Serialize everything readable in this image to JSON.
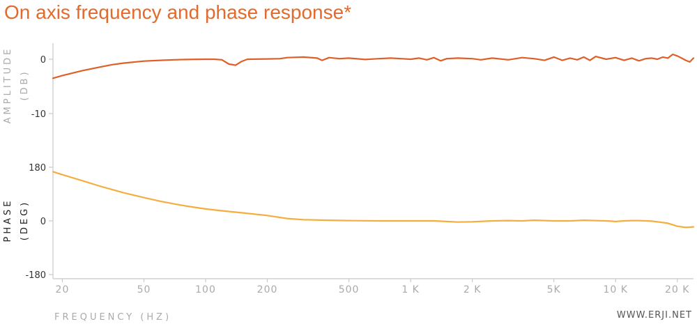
{
  "title": "On axis frequency and phase response*",
  "watermark": "WWW.ERJI.NET",
  "colors": {
    "title": "#e26a2c",
    "amplitude_line": "#de5f27",
    "phase_line": "#f5ad3e",
    "axis": "#c8c8c8",
    "label_gray": "#aaaaaa",
    "label_dark": "#222222"
  },
  "chart_data": [
    {
      "type": "line",
      "name": "amplitude",
      "xscale": "log",
      "xlim": [
        18,
        24000
      ],
      "ylim": [
        -10,
        3
      ],
      "ylabel_lines": [
        "AMPLITUDE",
        "(DB)"
      ],
      "yticks": [
        0,
        -10
      ],
      "ytick_labels": [
        "0",
        "-10"
      ],
      "series": [
        {
          "points": [
            [
              18,
              -3.5
            ],
            [
              20,
              -3.0
            ],
            [
              25,
              -2.1
            ],
            [
              30,
              -1.5
            ],
            [
              35,
              -1.0
            ],
            [
              40,
              -0.7
            ],
            [
              50,
              -0.35
            ],
            [
              60,
              -0.2
            ],
            [
              70,
              -0.1
            ],
            [
              80,
              -0.05
            ],
            [
              100,
              0.0
            ],
            [
              110,
              0.0
            ],
            [
              120,
              -0.1
            ],
            [
              130,
              -0.9
            ],
            [
              140,
              -1.1
            ],
            [
              150,
              -0.4
            ],
            [
              160,
              0.0
            ],
            [
              200,
              0.05
            ],
            [
              230,
              0.1
            ],
            [
              250,
              0.3
            ],
            [
              300,
              0.4
            ],
            [
              350,
              0.2
            ],
            [
              370,
              -0.2
            ],
            [
              400,
              0.3
            ],
            [
              450,
              0.1
            ],
            [
              500,
              0.2
            ],
            [
              600,
              -0.05
            ],
            [
              700,
              0.1
            ],
            [
              800,
              0.2
            ],
            [
              900,
              0.1
            ],
            [
              1000,
              0.0
            ],
            [
              1100,
              0.2
            ],
            [
              1200,
              -0.1
            ],
            [
              1300,
              0.3
            ],
            [
              1400,
              -0.3
            ],
            [
              1500,
              0.1
            ],
            [
              1700,
              0.2
            ],
            [
              2000,
              0.1
            ],
            [
              2200,
              -0.1
            ],
            [
              2500,
              0.2
            ],
            [
              3000,
              -0.1
            ],
            [
              3500,
              0.3
            ],
            [
              4000,
              0.1
            ],
            [
              4500,
              -0.2
            ],
            [
              5000,
              0.4
            ],
            [
              5500,
              -0.2
            ],
            [
              6000,
              0.2
            ],
            [
              6500,
              -0.1
            ],
            [
              7000,
              0.4
            ],
            [
              7500,
              -0.2
            ],
            [
              8000,
              0.5
            ],
            [
              9000,
              0.0
            ],
            [
              10000,
              0.3
            ],
            [
              11000,
              -0.2
            ],
            [
              12000,
              0.2
            ],
            [
              13000,
              -0.3
            ],
            [
              14000,
              0.1
            ],
            [
              15000,
              0.2
            ],
            [
              16000,
              0.0
            ],
            [
              17000,
              0.4
            ],
            [
              18000,
              0.2
            ],
            [
              19000,
              0.9
            ],
            [
              20000,
              0.6
            ],
            [
              21000,
              0.2
            ],
            [
              22000,
              -0.2
            ],
            [
              23000,
              -0.5
            ],
            [
              24000,
              0.2
            ]
          ]
        }
      ]
    },
    {
      "type": "line",
      "name": "phase",
      "xscale": "log",
      "xlim": [
        18,
        24000
      ],
      "ylim": [
        -180,
        180
      ],
      "ylabel_lines": [
        "PHASE",
        "(DEG)"
      ],
      "yticks": [
        180,
        0,
        -180
      ],
      "ytick_labels": [
        "180",
        "0",
        "-180"
      ],
      "xlabel": "FREQUENCY (HZ)",
      "xticks": [
        20,
        50,
        100,
        200,
        500,
        1000,
        2000,
        5000,
        10000,
        20000
      ],
      "xtick_labels": [
        "20",
        "50",
        "100",
        "200",
        "500",
        "1 K",
        "2 K",
        "5K",
        "10 K",
        "20 K"
      ],
      "series": [
        {
          "points": [
            [
              18,
              165
            ],
            [
              20,
              155
            ],
            [
              25,
              135
            ],
            [
              30,
              118
            ],
            [
              35,
              105
            ],
            [
              40,
              94
            ],
            [
              50,
              78
            ],
            [
              60,
              66
            ],
            [
              70,
              57
            ],
            [
              80,
              50
            ],
            [
              100,
              40
            ],
            [
              120,
              34
            ],
            [
              150,
              27
            ],
            [
              200,
              18
            ],
            [
              250,
              8
            ],
            [
              300,
              4
            ],
            [
              400,
              2
            ],
            [
              500,
              1
            ],
            [
              700,
              0
            ],
            [
              1000,
              0
            ],
            [
              1300,
              0
            ],
            [
              1500,
              -2
            ],
            [
              1700,
              -4
            ],
            [
              2000,
              -3
            ],
            [
              2500,
              0
            ],
            [
              3000,
              1
            ],
            [
              3500,
              0
            ],
            [
              4000,
              2
            ],
            [
              5000,
              0
            ],
            [
              6000,
              0
            ],
            [
              7000,
              2
            ],
            [
              8000,
              1
            ],
            [
              9000,
              0
            ],
            [
              10000,
              -2
            ],
            [
              11000,
              0
            ],
            [
              12000,
              1
            ],
            [
              13000,
              1
            ],
            [
              14000,
              0
            ],
            [
              15000,
              -1
            ],
            [
              16000,
              -3
            ],
            [
              18000,
              -8
            ],
            [
              20000,
              -18
            ],
            [
              22000,
              -22
            ],
            [
              24000,
              -20
            ]
          ]
        }
      ]
    }
  ]
}
